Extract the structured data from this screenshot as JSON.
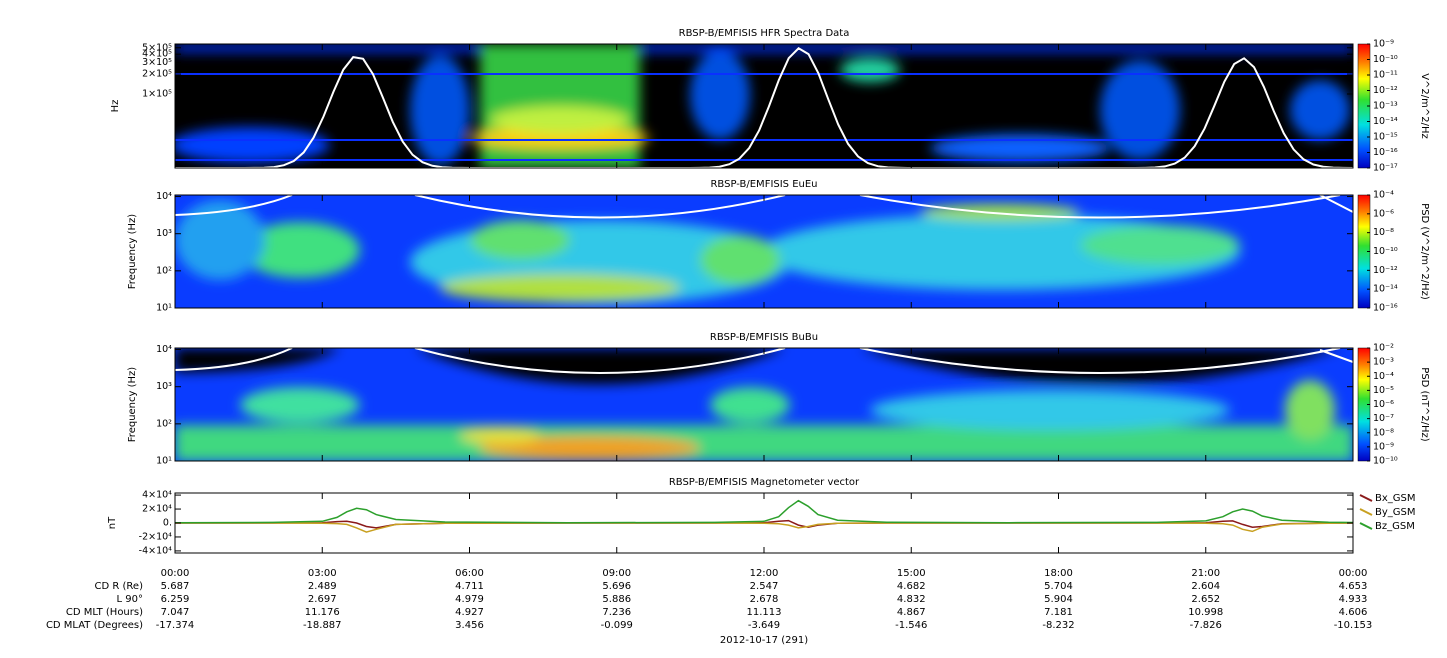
{
  "chart_data": [
    {
      "type": "spectrogram",
      "title": "RBSP-B/EMFISIS  HFR Spectra Data",
      "ylabel": "Hz",
      "log_y": true,
      "ylim": [
        7600,
        570000
      ],
      "yticks": [
        {
          "value": 100000,
          "label": "1×10⁵"
        },
        {
          "value": 200000,
          "label": "2×10⁵"
        },
        {
          "value": 300000,
          "label": "3×10⁵"
        },
        {
          "value": 400000,
          "label": "4×10⁵"
        },
        {
          "value": 500000,
          "label": "5×10⁵"
        }
      ],
      "colorbar": {
        "label": "V^2/m^2/Hz",
        "log": true,
        "lim": [
          1e-17,
          1e-09
        ],
        "ticks": [
          {
            "value": 1e-09,
            "label": "10⁻⁹"
          },
          {
            "value": 1e-10,
            "label": "10⁻¹⁰"
          },
          {
            "value": 1e-11,
            "label": "10⁻¹¹"
          },
          {
            "value": 1e-12,
            "label": "10⁻¹²"
          },
          {
            "value": 1e-13,
            "label": "10⁻¹³"
          },
          {
            "value": 1e-14,
            "label": "10⁻¹⁴"
          },
          {
            "value": 1e-15,
            "label": "10⁻¹⁵"
          },
          {
            "value": 1e-16,
            "label": "10⁻¹⁶"
          },
          {
            "value": 1e-17,
            "label": "10⁻¹⁷"
          }
        ]
      }
    },
    {
      "type": "spectrogram",
      "title": "RBSP-B/EMFISIS  EuEu",
      "ylabel": "Frequency (Hz)",
      "log_y": true,
      "ylim": [
        10,
        11000
      ],
      "yticks": [
        {
          "value": 10,
          "label": "10¹"
        },
        {
          "value": 100,
          "label": "10²"
        },
        {
          "value": 1000,
          "label": "10³"
        },
        {
          "value": 10000,
          "label": "10⁴"
        }
      ],
      "colorbar": {
        "label": "PSD (V^2/m^2/Hz)",
        "log": true,
        "lim": [
          1e-16,
          0.0001
        ],
        "ticks": [
          {
            "value": 0.0001,
            "label": "10⁻⁴"
          },
          {
            "value": 1e-06,
            "label": "10⁻⁶"
          },
          {
            "value": 1e-08,
            "label": "10⁻⁸"
          },
          {
            "value": 1e-10,
            "label": "10⁻¹⁰"
          },
          {
            "value": 1e-12,
            "label": "10⁻¹²"
          },
          {
            "value": 1e-14,
            "label": "10⁻¹⁴"
          },
          {
            "value": 1e-16,
            "label": "10⁻¹⁶"
          }
        ]
      }
    },
    {
      "type": "spectrogram",
      "title": "RBSP-B/EMFISIS  BuBu",
      "ylabel": "Frequency (Hz)",
      "log_y": true,
      "ylim": [
        10,
        11000
      ],
      "yticks": [
        {
          "value": 10,
          "label": "10¹"
        },
        {
          "value": 100,
          "label": "10²"
        },
        {
          "value": 1000,
          "label": "10³"
        },
        {
          "value": 10000,
          "label": "10⁴"
        }
      ],
      "colorbar": {
        "label": "PSD (nT^2/Hz)",
        "log": true,
        "lim": [
          1e-10,
          0.01
        ],
        "ticks": [
          {
            "value": 0.01,
            "label": "10⁻²"
          },
          {
            "value": 0.001,
            "label": "10⁻³"
          },
          {
            "value": 0.0001,
            "label": "10⁻⁴"
          },
          {
            "value": 1e-05,
            "label": "10⁻⁵"
          },
          {
            "value": 1e-06,
            "label": "10⁻⁶"
          },
          {
            "value": 1e-07,
            "label": "10⁻⁷"
          },
          {
            "value": 1e-08,
            "label": "10⁻⁸"
          },
          {
            "value": 1e-09,
            "label": "10⁻⁹"
          },
          {
            "value": 1e-10,
            "label": "10⁻¹⁰"
          }
        ]
      }
    },
    {
      "type": "line",
      "title": "RBSP-B/EMFISIS  Magnetometer vector",
      "ylabel": "nT",
      "ylim": [
        -43000,
        43000
      ],
      "yticks": [
        {
          "value": -40000,
          "label": "-4×10⁴"
        },
        {
          "value": -20000,
          "label": "-2×10⁴"
        },
        {
          "value": 0,
          "label": "0."
        },
        {
          "value": 20000,
          "label": "2×10⁴"
        },
        {
          "value": 40000,
          "label": "4×10⁴"
        }
      ],
      "xlim": [
        0,
        24
      ],
      "xticks": [
        {
          "value": 0,
          "label": "00:00"
        },
        {
          "value": 3,
          "label": "03:00"
        },
        {
          "value": 6,
          "label": "06:00"
        },
        {
          "value": 9,
          "label": "09:00"
        },
        {
          "value": 12,
          "label": "12:00"
        },
        {
          "value": 15,
          "label": "15:00"
        },
        {
          "value": 18,
          "label": "18:00"
        },
        {
          "value": 21,
          "label": "21:00"
        },
        {
          "value": 24,
          "label": "00:00"
        }
      ],
      "xlabel": "2012-10-17 (291)",
      "x": [
        0,
        2,
        3,
        3.3,
        3.5,
        3.7,
        3.9,
        4.1,
        4.5,
        5.5,
        8,
        11,
        12,
        12.3,
        12.5,
        12.7,
        12.9,
        13.1,
        13.5,
        14.5,
        17,
        20,
        21,
        21.35,
        21.55,
        21.75,
        21.95,
        22.15,
        22.55,
        23.5,
        24
      ],
      "series": [
        {
          "name": "Bx_GSM",
          "color": "#8b1a1a",
          "values": [
            0,
            0,
            500,
            2000,
            2500,
            0,
            -5000,
            -7000,
            -2000,
            -300,
            0,
            0,
            500,
            2500,
            3500,
            -3000,
            -6000,
            -3000,
            -500,
            0,
            0,
            0,
            500,
            2500,
            3000,
            -2000,
            -6000,
            -5000,
            -1000,
            -200,
            0
          ]
        },
        {
          "name": "By_GSM",
          "color": "#c8a020",
          "values": [
            0,
            0,
            -300,
            -800,
            -2000,
            -7000,
            -13000,
            -9000,
            -2000,
            -300,
            0,
            0,
            -300,
            -1000,
            -3000,
            -7000,
            -5000,
            -2000,
            -500,
            0,
            0,
            0,
            -300,
            -1000,
            -3000,
            -9000,
            -12000,
            -6000,
            -1500,
            -300,
            0
          ]
        },
        {
          "name": "Bz_GSM",
          "color": "#2ca02c",
          "values": [
            500,
            800,
            2500,
            8000,
            16000,
            21000,
            19000,
            12000,
            5000,
            1500,
            500,
            800,
            2500,
            9000,
            22000,
            32000,
            24000,
            12000,
            4000,
            1200,
            500,
            800,
            3000,
            9000,
            16000,
            20000,
            17000,
            10000,
            4000,
            1200,
            700
          ]
        }
      ],
      "ephemeris": {
        "rows": [
          {
            "label": "CD R (Re)",
            "values": [
              5.687,
              2.489,
              4.711,
              5.696,
              2.547,
              4.682,
              5.704,
              2.604,
              4.653
            ]
          },
          {
            "label": "L 90°",
            "values": [
              6.259,
              2.697,
              4.979,
              5.886,
              2.678,
              4.832,
              5.904,
              2.652,
              4.933
            ]
          },
          {
            "label": "CD MLT (Hours)",
            "values": [
              7.047,
              11.176,
              4.927,
              7.236,
              11.113,
              4.867,
              7.181,
              10.998,
              4.606
            ]
          },
          {
            "label": "CD MLAT (Degrees)",
            "values": [
              -17.374,
              -18.887,
              3.456,
              -0.099,
              -3.649,
              -1.546,
              -8.232,
              -7.826,
              -10.153
            ]
          }
        ]
      }
    }
  ]
}
